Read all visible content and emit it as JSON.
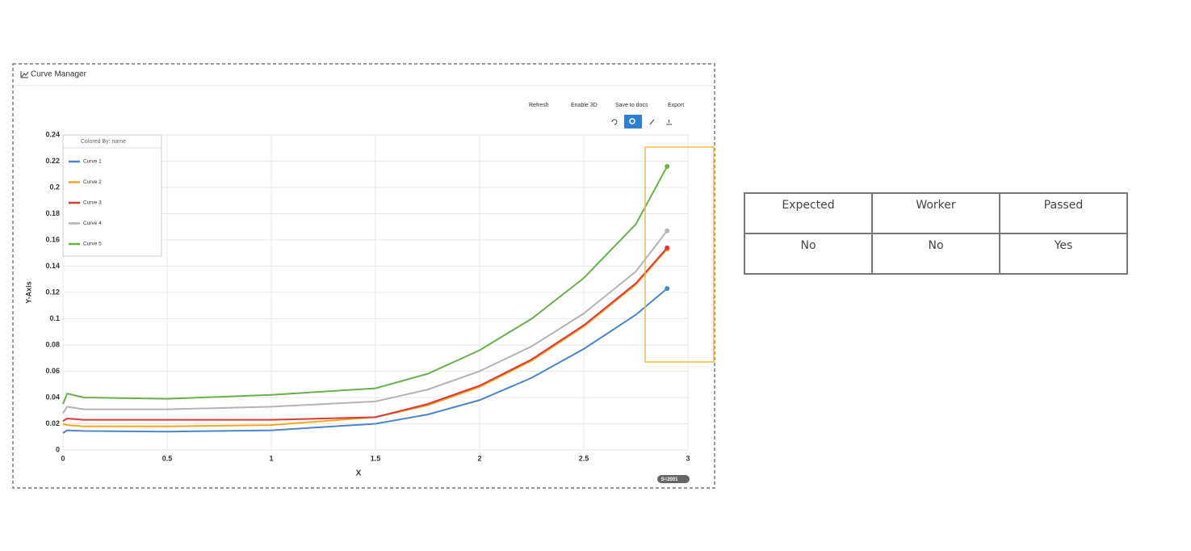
{
  "panel": {
    "title": "Curve Manager",
    "toolbar": [
      "Refresh",
      "Enable 3D",
      "Save to docs",
      "Export"
    ],
    "badge": "S=2001"
  },
  "chart_data": {
    "type": "line",
    "xlabel": "X",
    "ylabel": "Y-Axis",
    "legend_title": "Colored By: name",
    "x": [
      0,
      0.02,
      0.1,
      0.5,
      1,
      1.5,
      1.75,
      2,
      2.25,
      2.5,
      2.75,
      2.9
    ],
    "series": [
      {
        "name": "Curve 1",
        "color": "#4a86c8",
        "values": [
          0.013,
          0.015,
          0.0145,
          0.014,
          0.015,
          0.02,
          0.027,
          0.038,
          0.055,
          0.077,
          0.103,
          0.123
        ]
      },
      {
        "name": "Curve 2",
        "color": "#f5a623",
        "values": [
          0.02,
          0.019,
          0.018,
          0.018,
          0.019,
          0.025,
          0.034,
          0.048,
          0.068,
          0.094,
          0.126,
          0.153
        ]
      },
      {
        "name": "Curve 3",
        "color": "#d93a3a",
        "values": [
          0.022,
          0.024,
          0.023,
          0.023,
          0.023,
          0.025,
          0.035,
          0.049,
          0.069,
          0.095,
          0.127,
          0.154
        ]
      },
      {
        "name": "Curve 4",
        "color": "#b3b3b3",
        "values": [
          0.028,
          0.033,
          0.031,
          0.031,
          0.033,
          0.037,
          0.046,
          0.06,
          0.079,
          0.104,
          0.136,
          0.167
        ]
      },
      {
        "name": "Curve 5",
        "color": "#6ab04c",
        "values": [
          0.035,
          0.043,
          0.04,
          0.039,
          0.042,
          0.047,
          0.058,
          0.076,
          0.1,
          0.131,
          0.172,
          0.216
        ]
      }
    ],
    "xlim": [
      0,
      3
    ],
    "xticks": [
      0,
      0.5,
      1,
      1.5,
      2,
      2.5,
      3
    ],
    "ylim": [
      0,
      0.24
    ],
    "yticks": [
      0,
      0.02,
      0.04,
      0.06,
      0.08,
      0.1,
      0.12,
      0.14,
      0.16,
      0.18,
      0.2,
      0.22,
      0.24
    ],
    "grid": true
  },
  "table": {
    "header": [
      "Expected",
      "Worker",
      "Passed"
    ],
    "rows": [
      [
        "No",
        "No",
        "Yes"
      ]
    ]
  }
}
